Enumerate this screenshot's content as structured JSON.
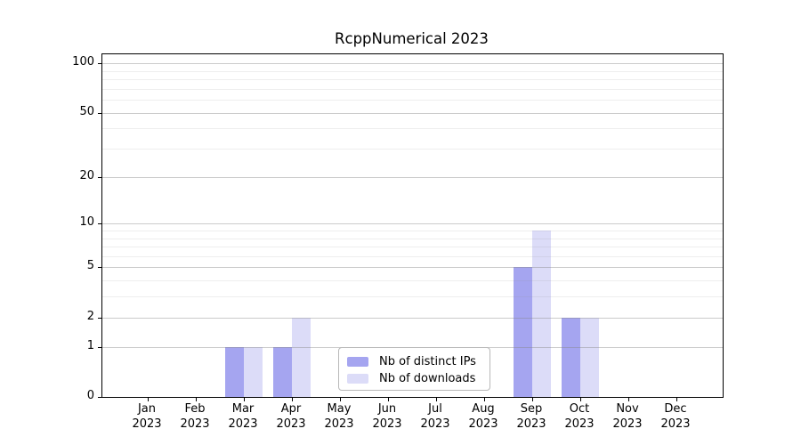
{
  "title": "RcppNumerical 2023",
  "chart_data": {
    "type": "bar",
    "title": "RcppNumerical 2023",
    "scale": "log1p",
    "categories": [
      "Jan",
      "Feb",
      "Mar",
      "Apr",
      "May",
      "Jun",
      "Jul",
      "Aug",
      "Sep",
      "Oct",
      "Nov",
      "Dec"
    ],
    "year_label": "2023",
    "series": [
      {
        "name": "Nb of distinct IPs",
        "color": "#a5a5f0",
        "values": [
          0,
          0,
          1,
          1,
          0,
          0,
          0,
          0,
          5,
          2,
          0,
          0
        ]
      },
      {
        "name": "Nb of downloads",
        "color": "#dcdcf8",
        "values": [
          0,
          0,
          1,
          2,
          0,
          0,
          0,
          0,
          9,
          2,
          0,
          0
        ]
      }
    ],
    "y_ticks": [
      0,
      1,
      2,
      5,
      10,
      20,
      50,
      100
    ],
    "y_minor_gridlines": [
      3,
      4,
      6,
      7,
      8,
      9,
      30,
      40,
      60,
      70,
      80,
      90
    ],
    "ylim": [
      0,
      113
    ],
    "xlabel": "",
    "ylabel": "",
    "grid": "horizontal",
    "legend_position": "inside lower center"
  },
  "legend": {
    "items": [
      {
        "label": "Nb of distinct IPs"
      },
      {
        "label": "Nb of downloads"
      }
    ]
  }
}
